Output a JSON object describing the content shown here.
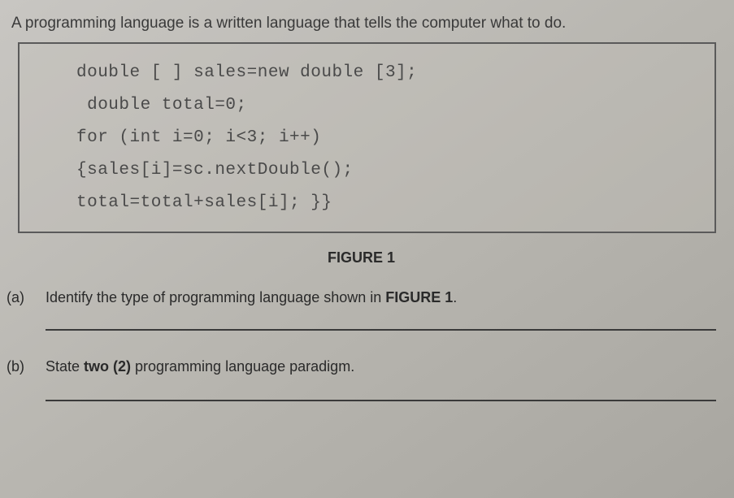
{
  "intro": "A programming language is a written language that tells the computer what to do.",
  "code": {
    "line1": "double [ ] sales=new double [3];",
    "line2": " double total=0;",
    "line3": "for (int i=0; i<3; i++)",
    "line4": "{sales[i]=sc.nextDouble();",
    "line5": "total=total+sales[i]; }}"
  },
  "figure_label": "FIGURE 1",
  "question_a": {
    "label": "(a)",
    "text_before": "Identify the type of programming language shown in ",
    "bold": "FIGURE 1",
    "text_after": "."
  },
  "question_b": {
    "label": "(b)",
    "text_before": "State ",
    "bold": "two (2)",
    "text_after": " programming language paradigm."
  },
  "colors": {
    "background": "#c0beba",
    "text": "#2a2a2a",
    "code_text": "#4a4a4a",
    "border": "#5a5a5a",
    "line": "#3a3a3a"
  },
  "typography": {
    "body_font": "Arial",
    "code_font": "Courier New",
    "body_size": 18,
    "code_size": 21,
    "intro_size": 19
  }
}
